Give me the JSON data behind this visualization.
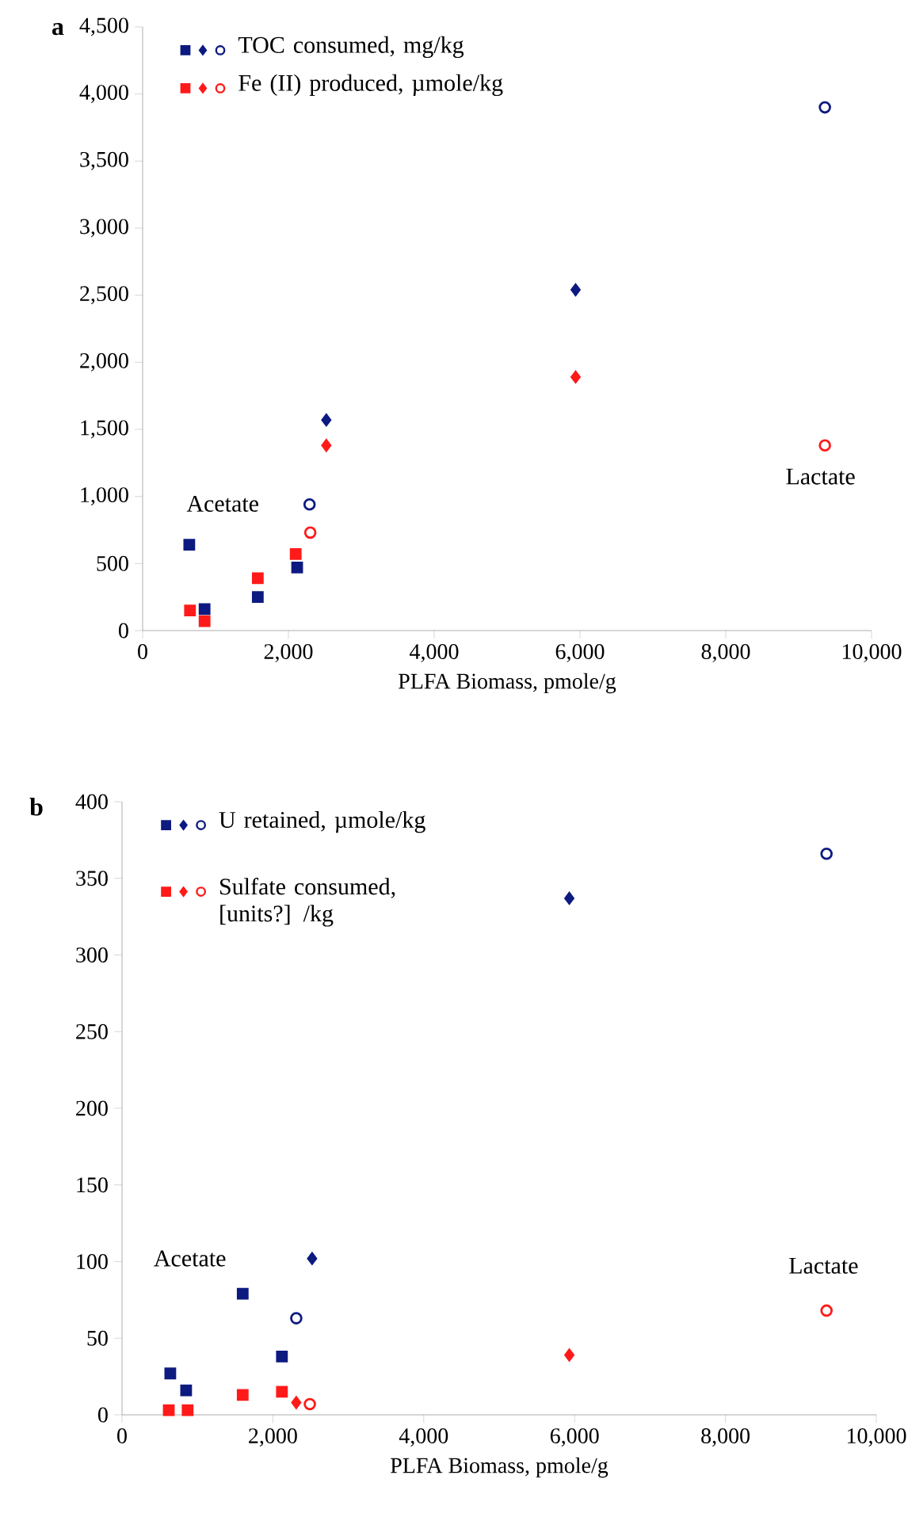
{
  "chart_data": [
    {
      "type": "scatter",
      "title": "a",
      "xlabel": "PLFA Biomass, pmole/g",
      "legend": "top left",
      "xlim": [
        0,
        10000
      ],
      "xticks": [
        0,
        {
          "value": 2000,
          "label": "2,000"
        },
        {
          "value": 4000,
          "label": "4,000"
        },
        {
          "value": 6000,
          "label": "6,000"
        },
        {
          "value": 8000,
          "label": "8,000"
        },
        {
          "value": 10000,
          "label": "10,000"
        }
      ],
      "ylim": [
        0,
        4500
      ],
      "yticks": [
        0,
        500,
        {
          "value": 1000,
          "label": "1,000"
        },
        {
          "value": 1500,
          "label": "1,500"
        },
        {
          "value": 2000,
          "label": "2,000"
        },
        {
          "value": 2500,
          "label": "2,500"
        },
        {
          "value": 3000,
          "label": "3,000"
        },
        {
          "value": 3500,
          "label": "3,500"
        },
        {
          "value": 4000,
          "label": "4,000"
        },
        {
          "value": 4500,
          "label": "4,500"
        }
      ],
      "series": [
        {
          "name": "TOC consumed, mg/kg",
          "color": "#0d1a80",
          "marker": "square",
          "x": [
            640,
            850,
            1580,
            2120
          ],
          "values": [
            640,
            160,
            250,
            470
          ]
        },
        {
          "color": "#0d1a80",
          "marker": "diamond",
          "x": [
            2520,
            5940
          ],
          "values": [
            1570,
            2540
          ]
        },
        {
          "color": "#0d1a80",
          "marker": "circle",
          "x": [
            2290,
            9360
          ],
          "values": [
            940,
            3900
          ]
        },
        {
          "name": "Fe (II) produced, µmole/kg",
          "color": "#ff1a1a",
          "marker": "square",
          "x": [
            650,
            850,
            1580,
            2100
          ],
          "values": [
            150,
            70,
            390,
            570
          ]
        },
        {
          "color": "#ff1a1a",
          "marker": "diamond",
          "x": [
            2520,
            5940
          ],
          "values": [
            1380,
            1890
          ]
        },
        {
          "color": "#ff1a1a",
          "marker": "circle",
          "x": [
            2300,
            9360
          ],
          "values": [
            730,
            1380
          ]
        }
      ],
      "annotations": [
        "Acetate",
        "Lactate"
      ]
    },
    {
      "type": "scatter",
      "title": "b",
      "xlabel": "PLFA Biomass, pmole/g",
      "legend": "top left",
      "xlim": [
        0,
        10000
      ],
      "xticks": [
        0,
        {
          "value": 2000,
          "label": "2,000"
        },
        {
          "value": 4000,
          "label": "4,000"
        },
        {
          "value": 6000,
          "label": "6,000"
        },
        {
          "value": 8000,
          "label": "8,000"
        },
        {
          "value": 10000,
          "label": "10,000"
        }
      ],
      "ylim": [
        0,
        400
      ],
      "yticks": [
        0,
        50,
        100,
        150,
        200,
        250,
        300,
        350,
        400
      ],
      "series": [
        {
          "name": "U retained, µmole/kg",
          "color": "#0d1a80",
          "marker": "square",
          "x": [
            640,
            850,
            1600,
            2120
          ],
          "values": [
            27,
            16,
            79,
            38
          ]
        },
        {
          "color": "#0d1a80",
          "marker": "diamond",
          "x": [
            2520,
            5930
          ],
          "values": [
            102,
            337
          ]
        },
        {
          "color": "#0d1a80",
          "marker": "circle",
          "x": [
            2310,
            9340
          ],
          "values": [
            63,
            366
          ]
        },
        {
          "name": "Sulfate consumed, [units?] /kg",
          "color": "#ff1a1a",
          "marker": "square",
          "x": [
            620,
            870,
            1600,
            2120
          ],
          "values": [
            3,
            3,
            13,
            15
          ]
        },
        {
          "color": "#ff1a1a",
          "marker": "diamond",
          "x": [
            2310,
            5930
          ],
          "values": [
            8,
            39
          ]
        },
        {
          "color": "#ff1a1a",
          "marker": "circle",
          "x": [
            2490,
            9340
          ],
          "values": [
            7,
            68
          ]
        }
      ],
      "annotations": [
        "Acetate",
        "Lactate"
      ]
    }
  ]
}
